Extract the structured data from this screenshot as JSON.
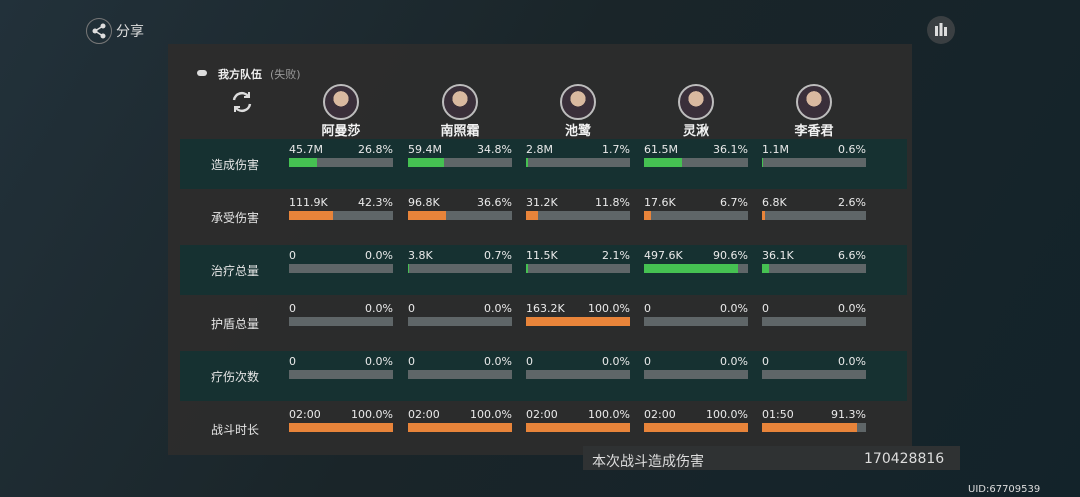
{
  "share": "分享",
  "team": {
    "title": "我方队伍",
    "status": "(失败)"
  },
  "characters": [
    "阿曼莎",
    "南照霜",
    "池鹭",
    "灵湫",
    "李香君"
  ],
  "rows": [
    {
      "label": "造成伤害",
      "color": "#45c152",
      "cells": [
        {
          "value": "45.7M",
          "percent": {
            "value": 26.8,
            "label": "26.8%"
          }
        },
        {
          "value": "59.4M",
          "percent": {
            "value": 34.8,
            "label": "34.8%"
          }
        },
        {
          "value": "2.8M",
          "percent": {
            "value": 1.7,
            "label": "1.7%"
          }
        },
        {
          "value": "61.5M",
          "percent": {
            "value": 36.1,
            "label": "36.1%"
          }
        },
        {
          "value": "1.1M",
          "percent": {
            "value": 0.6,
            "label": "0.6%"
          }
        }
      ]
    },
    {
      "label": "承受伤害",
      "color": "#e8843a",
      "cells": [
        {
          "value": "111.9K",
          "percent": {
            "value": 42.3,
            "label": "42.3%"
          }
        },
        {
          "value": "96.8K",
          "percent": {
            "value": 36.6,
            "label": "36.6%"
          }
        },
        {
          "value": "31.2K",
          "percent": {
            "value": 11.8,
            "label": "11.8%"
          }
        },
        {
          "value": "17.6K",
          "percent": {
            "value": 6.7,
            "label": "6.7%"
          }
        },
        {
          "value": "6.8K",
          "percent": {
            "value": 2.6,
            "label": "2.6%"
          }
        }
      ]
    },
    {
      "label": "治疗总量",
      "color": "#45c152",
      "cells": [
        {
          "value": "0",
          "percent": {
            "value": 0,
            "label": "0.0%"
          }
        },
        {
          "value": "3.8K",
          "percent": {
            "value": 0.7,
            "label": "0.7%"
          }
        },
        {
          "value": "11.5K",
          "percent": {
            "value": 2.1,
            "label": "2.1%"
          }
        },
        {
          "value": "497.6K",
          "percent": {
            "value": 90.6,
            "label": "90.6%"
          }
        },
        {
          "value": "36.1K",
          "percent": {
            "value": 6.6,
            "label": "6.6%"
          }
        }
      ]
    },
    {
      "label": "护盾总量",
      "color": "#e8843a",
      "cells": [
        {
          "value": "0",
          "percent": {
            "value": 0,
            "label": "0.0%"
          }
        },
        {
          "value": "0",
          "percent": {
            "value": 0,
            "label": "0.0%"
          }
        },
        {
          "value": "163.2K",
          "percent": {
            "value": 100,
            "label": "100.0%"
          }
        },
        {
          "value": "0",
          "percent": {
            "value": 0,
            "label": "0.0%"
          }
        },
        {
          "value": "0",
          "percent": {
            "value": 0,
            "label": "0.0%"
          }
        }
      ]
    },
    {
      "label": "疗伤次数",
      "color": "#e8843a",
      "cells": [
        {
          "value": "0",
          "percent": {
            "value": 0,
            "label": "0.0%"
          }
        },
        {
          "value": "0",
          "percent": {
            "value": 0,
            "label": "0.0%"
          }
        },
        {
          "value": "0",
          "percent": {
            "value": 0,
            "label": "0.0%"
          }
        },
        {
          "value": "0",
          "percent": {
            "value": 0,
            "label": "0.0%"
          }
        },
        {
          "value": "0",
          "percent": {
            "value": 0,
            "label": "0.0%"
          }
        }
      ]
    },
    {
      "label": "战斗时长",
      "color": "#e8843a",
      "cells": [
        {
          "value": "02:00",
          "percent": {
            "value": 100,
            "label": "100.0%"
          }
        },
        {
          "value": "02:00",
          "percent": {
            "value": 100,
            "label": "100.0%"
          }
        },
        {
          "value": "02:00",
          "percent": {
            "value": 100,
            "label": "100.0%"
          }
        },
        {
          "value": "02:00",
          "percent": {
            "value": 100,
            "label": "100.0%"
          }
        },
        {
          "value": "01:50",
          "percent": {
            "value": 91.3,
            "label": "91.3%"
          }
        }
      ]
    }
  ],
  "summary": {
    "label": "本次战斗造成伤害",
    "value": "170428816"
  },
  "uid": "UID:67709539"
}
